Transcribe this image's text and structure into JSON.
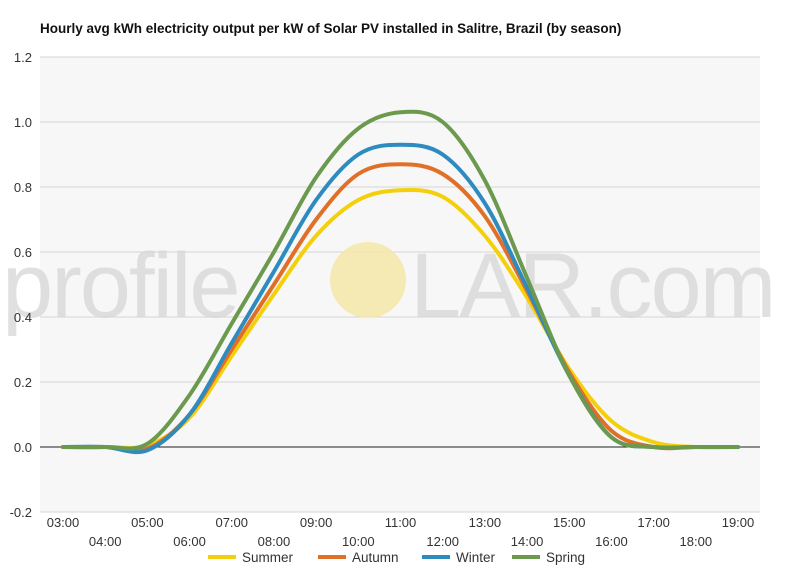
{
  "chart_data": {
    "type": "line",
    "title": "Hourly avg kWh electricity output per kW of Solar PV installed in Salitre, Brazil (by season)",
    "xlabel": "",
    "ylabel": "",
    "ylim": [
      -0.2,
      1.2
    ],
    "yticks": [
      "-0.2",
      "0.0",
      "0.2",
      "0.4",
      "0.6",
      "0.8",
      "1.0",
      "1.2"
    ],
    "ytick_values": [
      -0.2,
      0.0,
      0.2,
      0.4,
      0.6,
      0.8,
      1.0,
      1.2
    ],
    "x_labels": [
      "03:00",
      "04:00",
      "05:00",
      "06:00",
      "07:00",
      "08:00",
      "09:00",
      "10:00",
      "11:00",
      "12:00",
      "13:00",
      "14:00",
      "15:00",
      "16:00",
      "17:00",
      "18:00",
      "19:00"
    ],
    "grid": true,
    "legend_position": "bottom",
    "watermark": {
      "text_before": "profile",
      "text_after": "LAR.com",
      "sun_color": "#f6e8a8"
    },
    "series": [
      {
        "name": "Summer",
        "color": "#f4d00c",
        "values": [
          0.0,
          0.0,
          0.005,
          0.09,
          0.28,
          0.47,
          0.65,
          0.76,
          0.79,
          0.77,
          0.65,
          0.46,
          0.24,
          0.08,
          0.015,
          0.0,
          0.0
        ]
      },
      {
        "name": "Autumn",
        "color": "#e07028",
        "values": [
          0.0,
          0.0,
          -0.005,
          0.1,
          0.3,
          0.5,
          0.7,
          0.84,
          0.87,
          0.84,
          0.71,
          0.48,
          0.23,
          0.05,
          0.0,
          0.0,
          0.0
        ]
      },
      {
        "name": "Winter",
        "color": "#2e8bc0",
        "values": [
          0.0,
          0.0,
          -0.01,
          0.1,
          0.32,
          0.54,
          0.76,
          0.9,
          0.93,
          0.9,
          0.75,
          0.49,
          0.22,
          0.03,
          0.0,
          0.0,
          0.0
        ]
      },
      {
        "name": "Spring",
        "color": "#6b9a4e",
        "values": [
          0.0,
          0.0,
          0.01,
          0.16,
          0.38,
          0.6,
          0.83,
          0.98,
          1.03,
          1.0,
          0.82,
          0.52,
          0.22,
          0.03,
          0.0,
          0.0,
          0.0
        ]
      }
    ]
  }
}
